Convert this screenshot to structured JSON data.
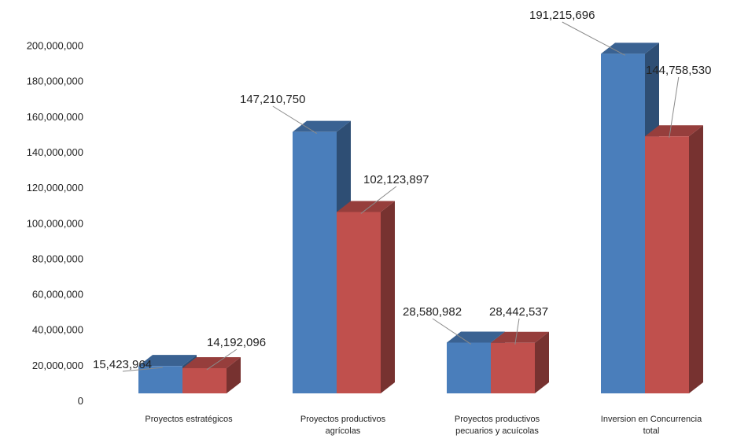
{
  "chart_data": {
    "type": "bar",
    "categories": [
      [
        "Proyectos estratégicos"
      ],
      [
        "Proyectos productivos",
        "agrícolas"
      ],
      [
        "Proyectos productivos",
        "pecuarios y acuícolas"
      ],
      [
        "Inversion en Concurrencia",
        "total"
      ]
    ],
    "series": [
      {
        "color": "#4a7ebb",
        "values": [
          15423964,
          147210750,
          28580982,
          191215696
        ]
      },
      {
        "color": "#c0504d",
        "values": [
          14192096,
          102123897,
          28442537,
          144758530
        ]
      }
    ],
    "data_labels": [
      [
        "15,423,964",
        "147,210,750",
        "28,580,982",
        "191,215,696"
      ],
      [
        "14,192,096",
        "102,123,897",
        "28,442,537",
        "144,758,530"
      ]
    ],
    "y_ticks": [
      "0",
      "20,000,000",
      "40,000,000",
      "60,000,000",
      "80,000,000",
      "100,000,000",
      "120,000,000",
      "140,000,000",
      "160,000,000",
      "180,000,000",
      "200,000,000"
    ],
    "ylim": [
      0,
      200000000
    ],
    "grid": false,
    "style": "3d-column"
  }
}
